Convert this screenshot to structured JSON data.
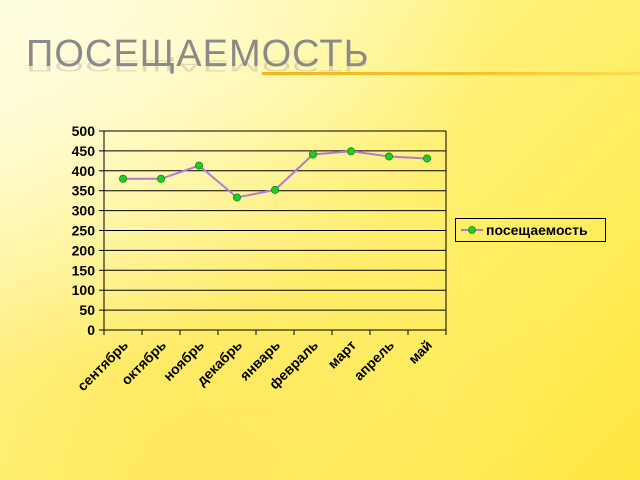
{
  "slide": {
    "title": "ПОСЕЩАЕМОСТЬ"
  },
  "colors": {
    "line": "#b07ad6",
    "marker": "#22cc22",
    "marker_stroke": "#118811",
    "gridline": "#000000",
    "title_rule": "#f2b51a",
    "title_text": "#8a8a8a"
  },
  "chart_data": {
    "type": "line",
    "title": "",
    "xlabel": "",
    "ylabel": "",
    "categories": [
      "сентябрь",
      "октябрь",
      "ноябрь",
      "декабрь",
      "январь",
      "февраль",
      "март",
      "апрель",
      "май"
    ],
    "series": [
      {
        "name": "посещаемость",
        "values": [
          380,
          380,
          413,
          333,
          352,
          441,
          449,
          436,
          431
        ]
      }
    ],
    "ylim": [
      0,
      500
    ],
    "ytick_step": 50,
    "grid": "horizontal",
    "legend_placement": "right"
  }
}
